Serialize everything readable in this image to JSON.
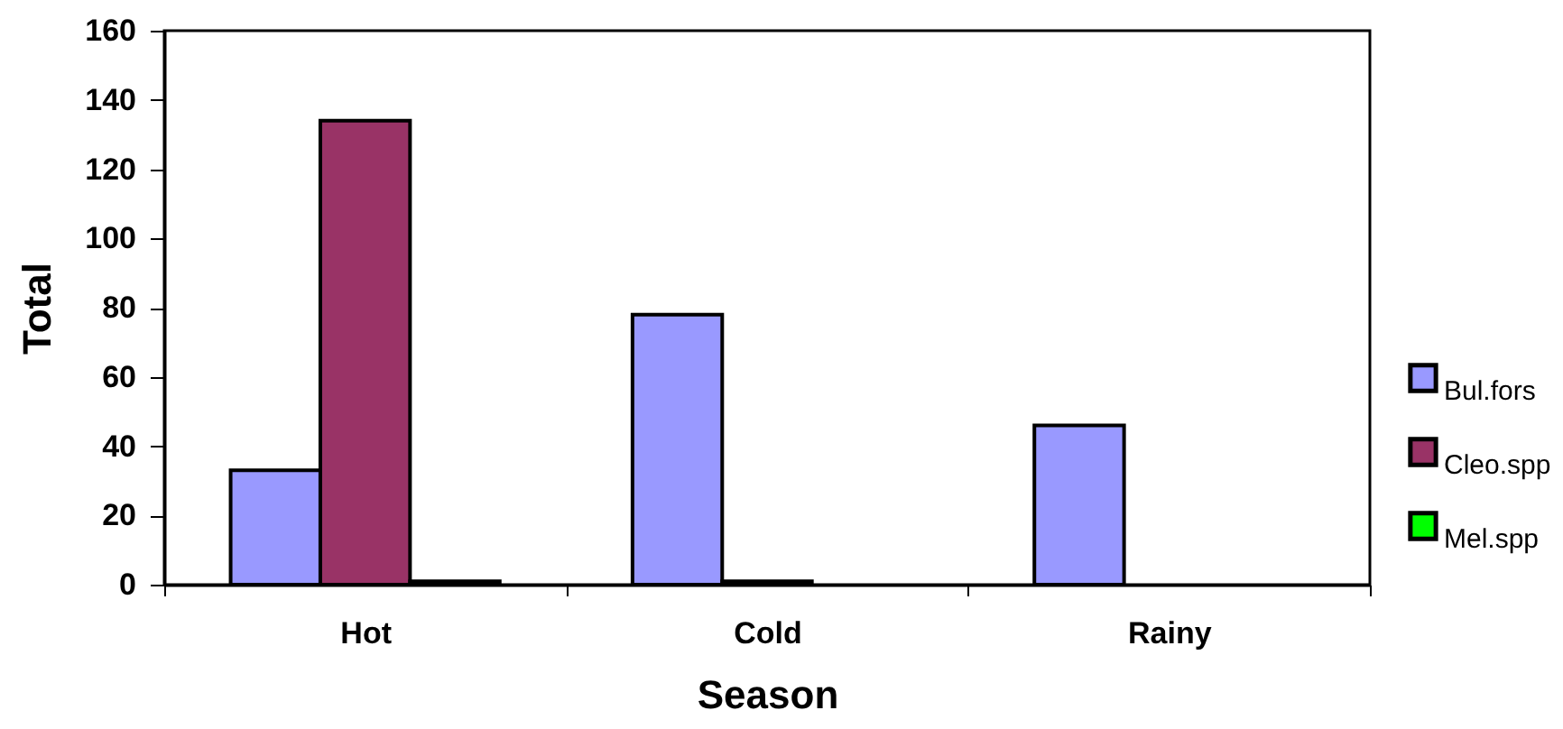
{
  "chart_data": {
    "type": "bar",
    "xlabel": "Season",
    "ylabel": "Total",
    "categories": [
      "Hot",
      "Cold",
      "Rainy"
    ],
    "series": [
      {
        "name": "Bul.fors",
        "color": "#9999ff",
        "values": [
          33,
          78,
          46
        ]
      },
      {
        "name": "Cleo.spp",
        "color": "#993366",
        "values": [
          134,
          1,
          null
        ]
      },
      {
        "name": "Mel.spp",
        "color": "#00ff00",
        "values": [
          1,
          null,
          null
        ]
      }
    ],
    "ylim": [
      0,
      160
    ],
    "yticks": [
      0,
      20,
      40,
      60,
      80,
      100,
      120,
      140,
      160
    ],
    "legend": "right"
  }
}
